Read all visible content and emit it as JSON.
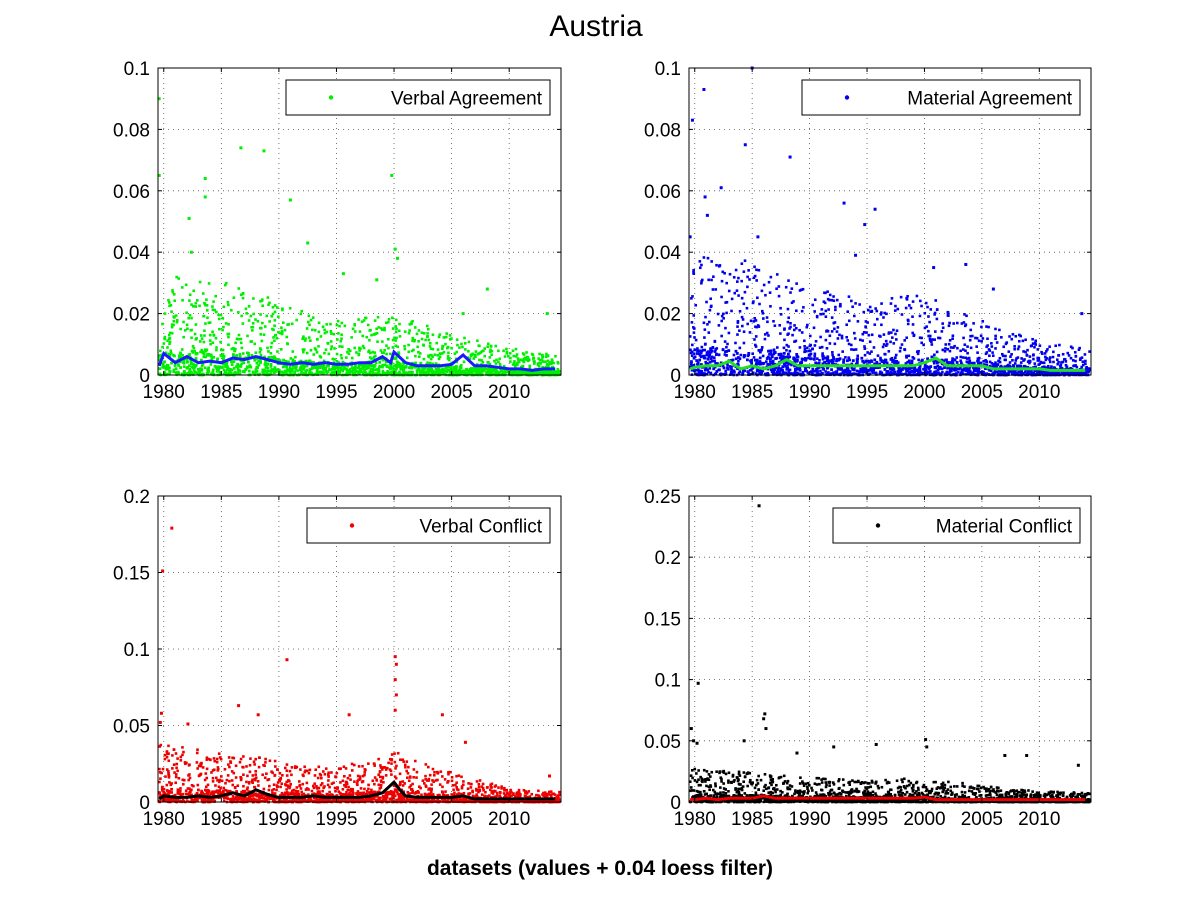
{
  "figure": {
    "title": "Austria",
    "footer": "datasets (values + 0.04 loess filter)"
  },
  "chart_data": [
    {
      "type": "scatter",
      "legend": "Verbal Agreement",
      "legend_position": "top-right",
      "point_color": "#00ee00",
      "trend_color": "#1a1aff",
      "xlim": [
        1979.5,
        2014.5
      ],
      "ylim": [
        0,
        0.1
      ],
      "xticks": [
        1980,
        1985,
        1990,
        1995,
        2000,
        2005,
        2010
      ],
      "xtick_labels": [
        "1980",
        "1985",
        "1990",
        "1995",
        "2000",
        "2005",
        "2010"
      ],
      "yticks": [
        0,
        0.02,
        0.04,
        0.06,
        0.08,
        0.1
      ],
      "ytick_labels": [
        "0",
        "0.02",
        "0.04",
        "0.06",
        "0.08",
        "0.1"
      ],
      "grid": true,
      "outliers": [
        [
          1979.6,
          0.09
        ],
        [
          1979.6,
          0.065
        ],
        [
          1982.2,
          0.051
        ],
        [
          1982.4,
          0.04
        ],
        [
          1983.6,
          0.064
        ],
        [
          1983.6,
          0.058
        ],
        [
          1986.7,
          0.074
        ],
        [
          1988.7,
          0.073
        ],
        [
          1991.0,
          0.057
        ],
        [
          1992.5,
          0.043
        ],
        [
          1995.6,
          0.033
        ],
        [
          1998.5,
          0.031
        ],
        [
          1999.8,
          0.065
        ],
        [
          2000.1,
          0.041
        ],
        [
          2000.3,
          0.038
        ],
        [
          2006.0,
          0.02
        ],
        [
          2008.1,
          0.028
        ],
        [
          2013.3,
          0.02
        ]
      ],
      "trend": [
        [
          1979.6,
          0.003
        ],
        [
          1980.0,
          0.007
        ],
        [
          1981.0,
          0.004
        ],
        [
          1982.0,
          0.006
        ],
        [
          1983.0,
          0.004
        ],
        [
          1984.0,
          0.0045
        ],
        [
          1985.0,
          0.004
        ],
        [
          1986.0,
          0.0055
        ],
        [
          1987.0,
          0.005
        ],
        [
          1988.0,
          0.006
        ],
        [
          1989.0,
          0.005
        ],
        [
          1990.0,
          0.004
        ],
        [
          1991.0,
          0.0035
        ],
        [
          1992.0,
          0.004
        ],
        [
          1993.0,
          0.0035
        ],
        [
          1994.0,
          0.004
        ],
        [
          1995.0,
          0.0035
        ],
        [
          1996.0,
          0.0035
        ],
        [
          1997.0,
          0.004
        ],
        [
          1998.0,
          0.004
        ],
        [
          1999.0,
          0.006
        ],
        [
          1999.7,
          0.004
        ],
        [
          2000.0,
          0.0075
        ],
        [
          2001.0,
          0.004
        ],
        [
          2002.0,
          0.003
        ],
        [
          2003.0,
          0.003
        ],
        [
          2004.0,
          0.003
        ],
        [
          2005.0,
          0.0035
        ],
        [
          2006.0,
          0.0065
        ],
        [
          2007.0,
          0.003
        ],
        [
          2008.0,
          0.003
        ],
        [
          2009.0,
          0.0025
        ],
        [
          2010.0,
          0.002
        ],
        [
          2011.0,
          0.002
        ],
        [
          2012.0,
          0.0015
        ],
        [
          2013.0,
          0.002
        ],
        [
          2014.0,
          0.002
        ]
      ],
      "scatter_band": [
        [
          1980,
          0.03
        ],
        [
          1985,
          0.028
        ],
        [
          1990,
          0.022
        ],
        [
          1995,
          0.016
        ],
        [
          2000,
          0.018
        ],
        [
          2005,
          0.012
        ],
        [
          2010,
          0.008
        ],
        [
          2014,
          0.006
        ]
      ]
    },
    {
      "type": "scatter",
      "legend": "Material Agreement",
      "legend_position": "top-right",
      "point_color": "#0000ee",
      "trend_color": "#22dd22",
      "xlim": [
        1979.5,
        2014.5
      ],
      "ylim": [
        0,
        0.1
      ],
      "xticks": [
        1980,
        1985,
        1990,
        1995,
        2000,
        2005,
        2010
      ],
      "xtick_labels": [
        "1980",
        "1985",
        "1990",
        "1995",
        "2000",
        "2005",
        "2010"
      ],
      "yticks": [
        0,
        0.02,
        0.04,
        0.06,
        0.08,
        0.1
      ],
      "ytick_labels": [
        "0",
        "0.02",
        "0.04",
        "0.06",
        "0.08",
        "0.1"
      ],
      "grid": true,
      "outliers": [
        [
          1979.8,
          0.083
        ],
        [
          1980.8,
          0.093
        ],
        [
          1985.0,
          0.1
        ],
        [
          1984.4,
          0.075
        ],
        [
          1982.3,
          0.061
        ],
        [
          1980.9,
          0.058
        ],
        [
          1981.1,
          0.052
        ],
        [
          1988.3,
          0.071
        ],
        [
          1993.0,
          0.056
        ],
        [
          1995.7,
          0.054
        ],
        [
          1994.8,
          0.049
        ],
        [
          1994.0,
          0.039
        ],
        [
          2000.8,
          0.035
        ],
        [
          2003.6,
          0.036
        ],
        [
          1979.6,
          0.045
        ],
        [
          1985.5,
          0.045
        ],
        [
          2006.0,
          0.028
        ],
        [
          2013.7,
          0.02
        ]
      ],
      "trend": [
        [
          1979.6,
          0.002
        ],
        [
          1980.0,
          0.0025
        ],
        [
          1981.0,
          0.003
        ],
        [
          1982.0,
          0.003
        ],
        [
          1983.0,
          0.0045
        ],
        [
          1984.0,
          0.002
        ],
        [
          1985.0,
          0.003
        ],
        [
          1986.0,
          0.002
        ],
        [
          1987.0,
          0.003
        ],
        [
          1988.0,
          0.005
        ],
        [
          1989.0,
          0.003
        ],
        [
          1990.0,
          0.003
        ],
        [
          1991.0,
          0.003
        ],
        [
          1992.0,
          0.003
        ],
        [
          1993.0,
          0.003
        ],
        [
          1994.0,
          0.003
        ],
        [
          1995.0,
          0.003
        ],
        [
          1996.0,
          0.003
        ],
        [
          1997.0,
          0.003
        ],
        [
          1998.0,
          0.003
        ],
        [
          1999.0,
          0.003
        ],
        [
          2000.0,
          0.004
        ],
        [
          2001.0,
          0.0055
        ],
        [
          2002.0,
          0.003
        ],
        [
          2003.0,
          0.003
        ],
        [
          2004.0,
          0.003
        ],
        [
          2005.0,
          0.003
        ],
        [
          2006.0,
          0.002
        ],
        [
          2007.0,
          0.002
        ],
        [
          2008.0,
          0.002
        ],
        [
          2009.0,
          0.002
        ],
        [
          2010.0,
          0.002
        ],
        [
          2011.0,
          0.0015
        ],
        [
          2012.0,
          0.0015
        ],
        [
          2013.0,
          0.0015
        ],
        [
          2014.0,
          0.0015
        ]
      ],
      "scatter_band": [
        [
          1980,
          0.035
        ],
        [
          1985,
          0.034
        ],
        [
          1990,
          0.026
        ],
        [
          1995,
          0.022
        ],
        [
          2000,
          0.024
        ],
        [
          2005,
          0.016
        ],
        [
          2010,
          0.01
        ],
        [
          2014,
          0.008
        ]
      ]
    },
    {
      "type": "scatter",
      "legend": "Verbal Conflict",
      "legend_position": "top-right",
      "point_color": "#ee0000",
      "trend_color": "#000000",
      "xlim": [
        1979.5,
        2014.5
      ],
      "ylim": [
        0,
        0.2
      ],
      "xticks": [
        1980,
        1985,
        1990,
        1995,
        2000,
        2005,
        2010
      ],
      "xtick_labels": [
        "1980",
        "1985",
        "1990",
        "1995",
        "2000",
        "2005",
        "2010"
      ],
      "yticks": [
        0,
        0.05,
        0.1,
        0.15,
        0.2
      ],
      "ytick_labels": [
        "0",
        "0.05",
        "0.1",
        "0.15",
        "0.2"
      ],
      "grid": true,
      "outliers": [
        [
          1980.7,
          0.179
        ],
        [
          1979.9,
          0.151
        ],
        [
          1979.8,
          0.058
        ],
        [
          1979.7,
          0.052
        ],
        [
          1982.1,
          0.051
        ],
        [
          1986.5,
          0.063
        ],
        [
          1988.2,
          0.057
        ],
        [
          1990.7,
          0.093
        ],
        [
          1996.1,
          0.057
        ],
        [
          2000.1,
          0.095
        ],
        [
          2000.2,
          0.09
        ],
        [
          2000.1,
          0.08
        ],
        [
          2000.2,
          0.07
        ],
        [
          2000.1,
          0.06
        ],
        [
          2004.2,
          0.057
        ],
        [
          2006.2,
          0.039
        ],
        [
          2013.5,
          0.017
        ]
      ],
      "trend": [
        [
          1979.6,
          0.002
        ],
        [
          1980.0,
          0.004
        ],
        [
          1981.0,
          0.003
        ],
        [
          1982.0,
          0.003
        ],
        [
          1983.0,
          0.004
        ],
        [
          1984.0,
          0.003
        ],
        [
          1985.0,
          0.004
        ],
        [
          1986.0,
          0.006
        ],
        [
          1987.0,
          0.004
        ],
        [
          1988.0,
          0.008
        ],
        [
          1989.0,
          0.005
        ],
        [
          1990.0,
          0.003
        ],
        [
          1991.0,
          0.003
        ],
        [
          1992.0,
          0.003
        ],
        [
          1993.0,
          0.004
        ],
        [
          1994.0,
          0.003
        ],
        [
          1995.0,
          0.003
        ],
        [
          1996.0,
          0.003
        ],
        [
          1997.0,
          0.003
        ],
        [
          1998.0,
          0.004
        ],
        [
          1999.0,
          0.006
        ],
        [
          2000.0,
          0.013
        ],
        [
          2000.5,
          0.008
        ],
        [
          2001.0,
          0.004
        ],
        [
          2002.0,
          0.003
        ],
        [
          2003.0,
          0.003
        ],
        [
          2004.0,
          0.003
        ],
        [
          2005.0,
          0.003
        ],
        [
          2006.0,
          0.004
        ],
        [
          2007.0,
          0.002
        ],
        [
          2008.0,
          0.002
        ],
        [
          2009.0,
          0.002
        ],
        [
          2010.0,
          0.002
        ],
        [
          2011.0,
          0.002
        ],
        [
          2012.0,
          0.002
        ],
        [
          2013.0,
          0.002
        ],
        [
          2014.0,
          0.002
        ]
      ],
      "scatter_band": [
        [
          1980,
          0.035
        ],
        [
          1985,
          0.03
        ],
        [
          1990,
          0.025
        ],
        [
          1995,
          0.02
        ],
        [
          2000,
          0.03
        ],
        [
          2005,
          0.018
        ],
        [
          2010,
          0.008
        ],
        [
          2014,
          0.006
        ]
      ]
    },
    {
      "type": "scatter",
      "legend": "Material Conflict",
      "legend_position": "top-right",
      "point_color": "#000000",
      "trend_color": "#ee0000",
      "xlim": [
        1979.5,
        2014.5
      ],
      "ylim": [
        0,
        0.25
      ],
      "xticks": [
        1980,
        1985,
        1990,
        1995,
        2000,
        2005,
        2010
      ],
      "xtick_labels": [
        "1980",
        "1985",
        "1990",
        "1995",
        "2000",
        "2005",
        "2010"
      ],
      "yticks": [
        0,
        0.05,
        0.1,
        0.15,
        0.2,
        0.25
      ],
      "ytick_labels": [
        "0",
        "0.05",
        "0.1",
        "0.15",
        "0.2",
        "0.25"
      ],
      "grid": true,
      "outliers": [
        [
          1985.6,
          0.242
        ],
        [
          1980.3,
          0.097
        ],
        [
          1979.7,
          0.06
        ],
        [
          1979.9,
          0.05
        ],
        [
          1980.2,
          0.048
        ],
        [
          1986.1,
          0.072
        ],
        [
          1986.0,
          0.068
        ],
        [
          1986.2,
          0.06
        ],
        [
          1984.3,
          0.05
        ],
        [
          1988.9,
          0.04
        ],
        [
          1992.1,
          0.045
        ],
        [
          1995.8,
          0.047
        ],
        [
          2000.1,
          0.051
        ],
        [
          2000.2,
          0.045
        ],
        [
          2007.0,
          0.038
        ],
        [
          2008.9,
          0.038
        ],
        [
          2013.4,
          0.03
        ]
      ],
      "trend": [
        [
          1979.6,
          0.002
        ],
        [
          1980.0,
          0.002
        ],
        [
          1981.0,
          0.003
        ],
        [
          1982.0,
          0.002
        ],
        [
          1983.0,
          0.003
        ],
        [
          1984.0,
          0.003
        ],
        [
          1985.0,
          0.003
        ],
        [
          1986.0,
          0.005
        ],
        [
          1987.0,
          0.003
        ],
        [
          1988.0,
          0.003
        ],
        [
          1989.0,
          0.003
        ],
        [
          1990.0,
          0.003
        ],
        [
          1991.0,
          0.003
        ],
        [
          1992.0,
          0.003
        ],
        [
          1993.0,
          0.003
        ],
        [
          1994.0,
          0.003
        ],
        [
          1995.0,
          0.003
        ],
        [
          1996.0,
          0.003
        ],
        [
          1997.0,
          0.003
        ],
        [
          1998.0,
          0.003
        ],
        [
          1999.0,
          0.003
        ],
        [
          2000.0,
          0.004
        ],
        [
          2001.0,
          0.002
        ],
        [
          2002.0,
          0.002
        ],
        [
          2003.0,
          0.002
        ],
        [
          2004.0,
          0.002
        ],
        [
          2005.0,
          0.002
        ],
        [
          2006.0,
          0.002
        ],
        [
          2007.0,
          0.002
        ],
        [
          2008.0,
          0.002
        ],
        [
          2009.0,
          0.002
        ],
        [
          2010.0,
          0.002
        ],
        [
          2011.0,
          0.002
        ],
        [
          2012.0,
          0.002
        ],
        [
          2013.0,
          0.002
        ],
        [
          2014.0,
          0.002
        ]
      ],
      "scatter_band": [
        [
          1980,
          0.025
        ],
        [
          1985,
          0.022
        ],
        [
          1990,
          0.018
        ],
        [
          1995,
          0.016
        ],
        [
          2000,
          0.018
        ],
        [
          2005,
          0.012
        ],
        [
          2010,
          0.008
        ],
        [
          2014,
          0.007
        ]
      ]
    }
  ]
}
